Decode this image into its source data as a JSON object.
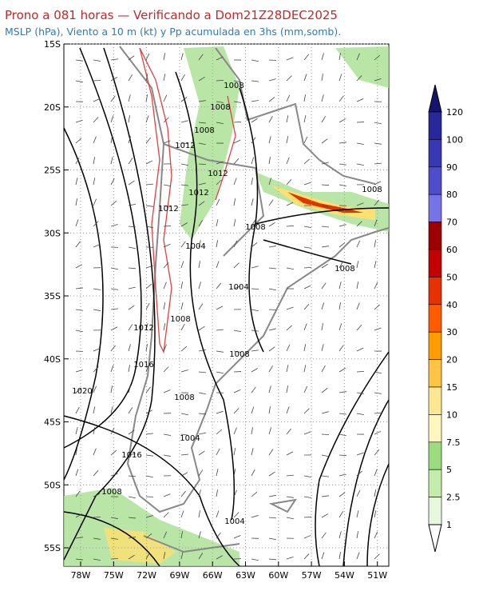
{
  "header": {
    "title": "Prono a 081 horas — Verificando a Dom21Z28DEC2025",
    "subtitle": "MSLP (hPa), Viento a 10 m (kt) y Pp acumulada en 3hs (mm,somb)."
  },
  "map": {
    "lat_labels": [
      "15S",
      "20S",
      "25S",
      "30S",
      "35S",
      "40S",
      "45S",
      "50S",
      "55S"
    ],
    "lon_labels": [
      "78W",
      "75W",
      "72W",
      "69W",
      "66W",
      "63W",
      "60W",
      "57W",
      "54W",
      "51W"
    ],
    "isobar_labels": [
      "1008",
      "1008",
      "1008",
      "1012",
      "1012",
      "1012",
      "1012",
      "1008",
      "1008",
      "1004",
      "1008",
      "1004",
      "1008",
      "1012",
      "1016",
      "1008",
      "1020",
      "1008",
      "1004",
      "1016",
      "1008",
      "1004"
    ]
  },
  "colorbar": {
    "labels": [
      "120",
      "100",
      "90",
      "80",
      "70",
      "60",
      "50",
      "40",
      "30",
      "20",
      "15",
      "10",
      "7.5",
      "5",
      "2.5",
      "1"
    ],
    "colors": [
      "#14146e",
      "#28289c",
      "#3838b4",
      "#4e4ecc",
      "#7474e4",
      "#9c0000",
      "#c40000",
      "#e63200",
      "#ff5c00",
      "#ff9c00",
      "#ffc444",
      "#ffe690",
      "#fff6c0",
      "#9cdc80",
      "#c4ecac",
      "#e6f8de",
      "#ffffff"
    ]
  }
}
